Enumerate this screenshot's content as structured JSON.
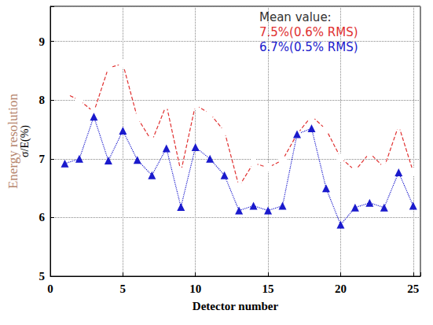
{
  "chart_data": {
    "type": "line",
    "title": "Energy resolution",
    "x_label": "Detector number",
    "y_label": "σ/E(%)",
    "x": [
      1,
      2,
      3,
      4,
      5,
      6,
      7,
      8,
      9,
      10,
      11,
      12,
      13,
      14,
      15,
      16,
      17,
      18,
      19,
      20,
      21,
      22,
      23,
      24,
      25
    ],
    "series": [
      {
        "color": "#e03030",
        "marker": "open_circle",
        "line_style": "dashed",
        "values": [
          8.12,
          8.0,
          7.8,
          8.55,
          8.62,
          7.7,
          7.3,
          7.92,
          6.78,
          7.92,
          7.77,
          7.47,
          6.53,
          6.93,
          6.85,
          6.98,
          7.42,
          7.73,
          7.5,
          7.02,
          6.8,
          7.1,
          6.85,
          7.57,
          6.78
        ]
      },
      {
        "color": "#1a1acc",
        "marker": "triangle",
        "line_style": "dotted",
        "values": [
          6.92,
          7.0,
          7.72,
          6.97,
          7.48,
          6.98,
          6.72,
          7.18,
          6.18,
          7.2,
          7.0,
          6.72,
          6.12,
          6.2,
          6.12,
          6.2,
          7.42,
          7.52,
          6.5,
          5.88,
          6.17,
          6.25,
          6.17,
          6.77,
          6.2
        ]
      }
    ],
    "xlim": [
      0,
      25.5
    ],
    "xticks": [
      0,
      5,
      10,
      15,
      20,
      25
    ],
    "ylim": [
      5,
      9.6
    ],
    "yticks": [
      5,
      6,
      7,
      8,
      9
    ],
    "grid": true,
    "annotations": [
      {
        "text": "Mean value:",
        "color": "#333333"
      },
      {
        "text": "7.5%(0.6% RMS)",
        "color": "#e03030"
      },
      {
        "text": "6.7%(0.5% RMS)",
        "color": "#1a1acc"
      }
    ]
  }
}
